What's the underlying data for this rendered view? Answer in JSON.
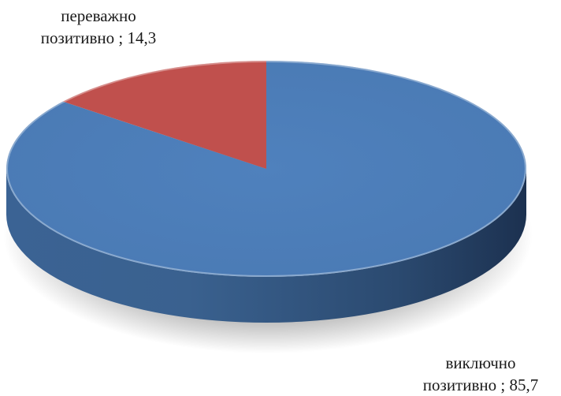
{
  "chart_data": {
    "type": "pie",
    "style": "3d",
    "slices": [
      {
        "category": "виключно позитивно",
        "value": 85.7,
        "color": "#4f81bd",
        "label_line1": "виключно",
        "label_line2": "позитивно ; 85,7"
      },
      {
        "category": "переважно позитивно",
        "value": 14.3,
        "color": "#c0504d",
        "label_line1": "переважно",
        "label_line2": "позитивно ; 14,3"
      }
    ],
    "legend": "none"
  }
}
